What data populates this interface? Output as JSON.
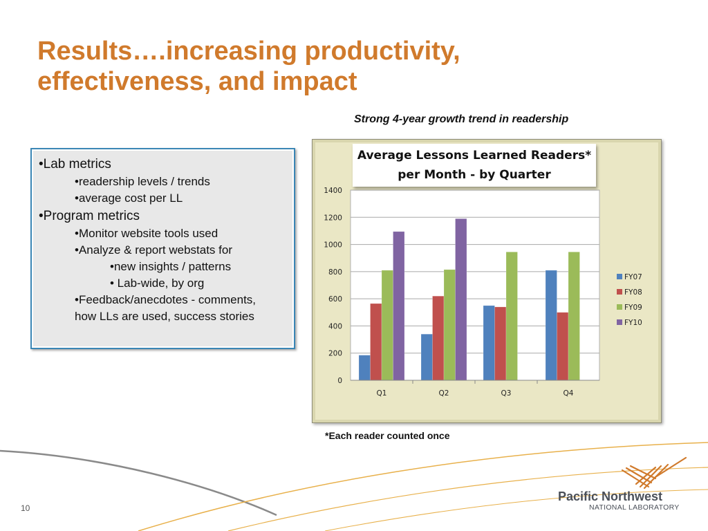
{
  "slide": {
    "title_line1": "Results….increasing productivity,",
    "title_line2": "effectiveness, and impact",
    "subtitle": "Strong 4-year growth trend in readership",
    "footnote": "*Each reader counted once",
    "page_number": "10"
  },
  "bullets": [
    {
      "text": "•Lab metrics",
      "level": 1
    },
    {
      "text": "•readership levels / trends",
      "level": 2
    },
    {
      "text": "•average cost per LL",
      "level": 2
    },
    {
      "text": "•Program metrics",
      "level": 1
    },
    {
      "text": "•Monitor website tools used",
      "level": 2
    },
    {
      "text": "•Analyze & report webstats for",
      "level": 2
    },
    {
      "text": "•new insights / patterns",
      "level": 3
    },
    {
      "text": "• Lab-wide, by org",
      "level": 3
    },
    {
      "text": "•Feedback/anecdotes - comments,",
      "level": 2
    },
    {
      "text": "how LLs are used, success stories",
      "level": 2
    }
  ],
  "logo": {
    "line1": "Pacific Northwest",
    "line2": "NATIONAL LABORATORY",
    "icon": "pnnl-net-icon",
    "color": "#d07a2c"
  },
  "colors": {
    "title": "#d07a2c",
    "chart_background": "#eae7c5",
    "panel_border": "#3a86b5"
  },
  "chart_data": {
    "type": "bar",
    "title_line1": "Average Lessons Learned Readers*",
    "title_line2": "per Month - by Quarter",
    "categories": [
      "Q1",
      "Q2",
      "Q3",
      "Q4"
    ],
    "series": [
      {
        "name": "FY07",
        "color": "#4f81bd",
        "values": [
          185,
          340,
          550,
          810
        ]
      },
      {
        "name": "FY08",
        "color": "#c0504d",
        "values": [
          565,
          620,
          540,
          500
        ]
      },
      {
        "name": "FY09",
        "color": "#9bbb59",
        "values": [
          810,
          815,
          945,
          945
        ]
      },
      {
        "name": "FY10",
        "color": "#8064a2",
        "values": [
          1095,
          1190,
          null,
          null
        ]
      }
    ],
    "yticks": [
      0,
      200,
      400,
      600,
      800,
      1000,
      1200,
      1400
    ],
    "ylim": [
      0,
      1400
    ],
    "grid": true,
    "legend": "right"
  }
}
